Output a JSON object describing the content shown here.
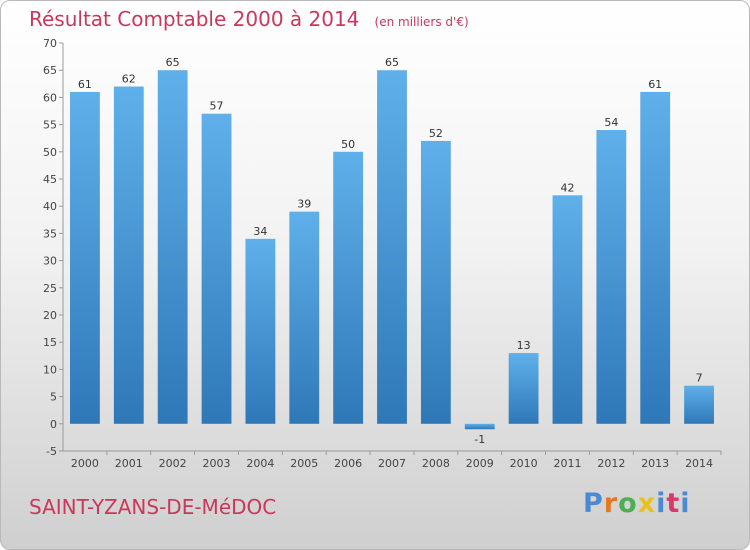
{
  "header": {
    "title": "Résultat Comptable 2000 à 2014",
    "unit": "(en milliers d'€)"
  },
  "footer": {
    "place": "SAINT-YZANS-DE-MéDOC",
    "logo": "Proxiti",
    "logo_colors": [
      "#4a8ad4",
      "#e8761f",
      "#4caf50",
      "#e8c21a",
      "#4a8ad4",
      "#d63a6a",
      "#4a8ad4"
    ]
  },
  "colors": {
    "bar_top": "#5fb0ea",
    "bar_bottom": "#2f78b8",
    "text": "#c8385a"
  },
  "chart_data": {
    "type": "bar",
    "categories": [
      "2000",
      "2001",
      "2002",
      "2003",
      "2004",
      "2005",
      "2006",
      "2007",
      "2008",
      "2009",
      "2010",
      "2011",
      "2012",
      "2013",
      "2014"
    ],
    "values": [
      61,
      62,
      65,
      57,
      34,
      39,
      50,
      65,
      52,
      -1,
      13,
      42,
      54,
      61,
      7
    ],
    "data_labels": [
      "61",
      "62",
      "65",
      "57",
      "34",
      "39",
      "50",
      "65",
      "52",
      "-1",
      "13",
      "42",
      "54",
      "61",
      "7"
    ],
    "ylim": [
      -5,
      70
    ],
    "yticks": [
      -5,
      0,
      5,
      10,
      15,
      20,
      25,
      30,
      35,
      40,
      45,
      50,
      55,
      60,
      65,
      70
    ],
    "grid": false,
    "legend": "none"
  }
}
